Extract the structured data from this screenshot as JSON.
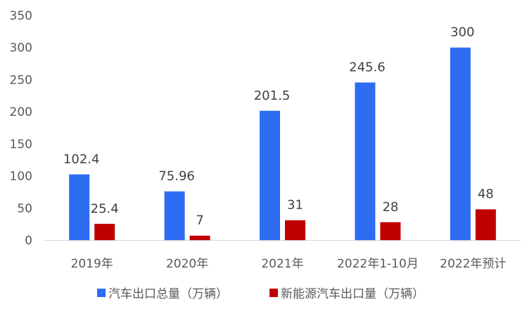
{
  "chart_data": {
    "type": "bar",
    "categories": [
      "2019年",
      "2020年",
      "2021年",
      "2022年1-10月",
      "2022年预计"
    ],
    "series": [
      {
        "name": "汽车出口总量（万辆）",
        "color": "#2e6cf2",
        "values": [
          102.4,
          75.96,
          201.5,
          245.6,
          300
        ],
        "labels": [
          "102.4",
          "75.96",
          "201.5",
          "245.6",
          "300"
        ]
      },
      {
        "name": "新能源汽车出口量（万辆）",
        "color": "#c00000",
        "values": [
          25.4,
          7,
          31,
          28,
          48
        ],
        "labels": [
          "25.4",
          "7",
          "31",
          "28",
          "48"
        ]
      }
    ],
    "ylim": [
      0,
      350
    ],
    "yticks": [
      "0",
      "50",
      "100",
      "150",
      "200",
      "250",
      "300",
      "350"
    ],
    "grid": false,
    "legend_position": "bottom"
  }
}
